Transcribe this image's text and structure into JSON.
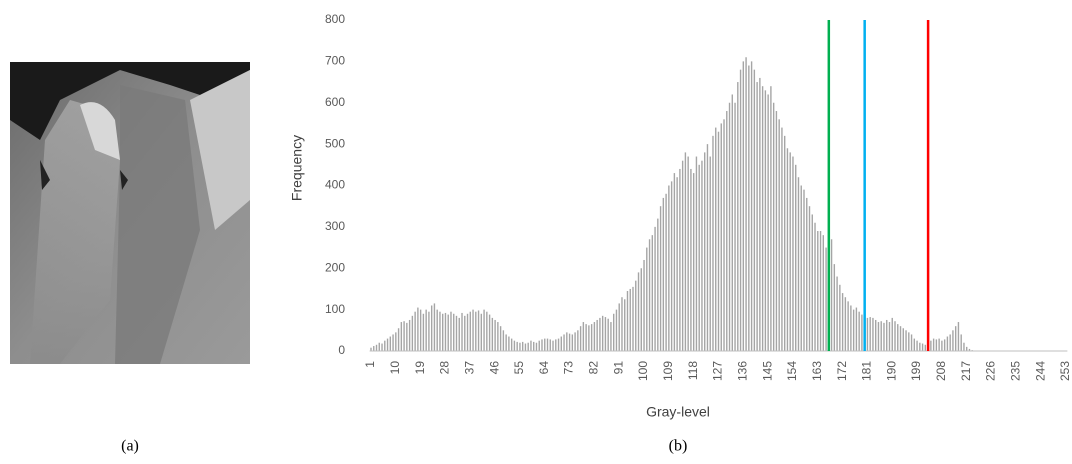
{
  "panels": {
    "a": "(a)",
    "b": "(b)"
  },
  "chart_data": {
    "type": "bar",
    "ylabel": "Frequency",
    "xlabel": "Gray-level",
    "categories": [
      1,
      null,
      null,
      null,
      null,
      null,
      null,
      null,
      null,
      10,
      null,
      null,
      null,
      null,
      null,
      null,
      null,
      null,
      19,
      null,
      null,
      null,
      null,
      null,
      null,
      null,
      null,
      28,
      null,
      null,
      null,
      null,
      null,
      null,
      null,
      null,
      37,
      null,
      null,
      null,
      null,
      null,
      null,
      null,
      null,
      46,
      null,
      null,
      null,
      null,
      null,
      null,
      null,
      null,
      55,
      null,
      null,
      null,
      null,
      null,
      null,
      null,
      null,
      64,
      null,
      null,
      null,
      null,
      null,
      null,
      null,
      null,
      73,
      null,
      null,
      null,
      null,
      null,
      null,
      null,
      null,
      82,
      null,
      null,
      null,
      null,
      null,
      null,
      null,
      null,
      91,
      null,
      null,
      null,
      null,
      null,
      null,
      null,
      null,
      100,
      null,
      null,
      null,
      null,
      null,
      null,
      null,
      null,
      109,
      null,
      null,
      null,
      null,
      null,
      null,
      null,
      null,
      118,
      null,
      null,
      null,
      null,
      null,
      null,
      null,
      null,
      127,
      null,
      null,
      null,
      null,
      null,
      null,
      null,
      null,
      136,
      null,
      null,
      null,
      null,
      null,
      null,
      null,
      null,
      145,
      null,
      null,
      null,
      null,
      null,
      null,
      null,
      null,
      154,
      null,
      null,
      null,
      null,
      null,
      null,
      null,
      null,
      163,
      null,
      null,
      null,
      null,
      null,
      null,
      null,
      null,
      172,
      null,
      null,
      null,
      null,
      null,
      null,
      null,
      null,
      181,
      null,
      null,
      null,
      null,
      null,
      null,
      null,
      null,
      190,
      null,
      null,
      null,
      null,
      null,
      null,
      null,
      null,
      199,
      null,
      null,
      null,
      null,
      null,
      null,
      null,
      null,
      208,
      null,
      null,
      null,
      null,
      null,
      null,
      null,
      null,
      217,
      null,
      null,
      null,
      null,
      null,
      null,
      null,
      null,
      226,
      null,
      null,
      null,
      null,
      null,
      null,
      null,
      null,
      235,
      null,
      null,
      null,
      null,
      null,
      null,
      null,
      null,
      244,
      null,
      null,
      null,
      null,
      null,
      null,
      null,
      null,
      253
    ],
    "values": [
      8,
      12,
      15,
      20,
      18,
      25,
      30,
      35,
      40,
      45,
      55,
      70,
      72,
      68,
      75,
      85,
      95,
      105,
      100,
      90,
      100,
      95,
      110,
      115,
      100,
      95,
      90,
      92,
      88,
      95,
      90,
      85,
      80,
      92,
      85,
      90,
      95,
      100,
      95,
      98,
      90,
      100,
      95,
      88,
      80,
      75,
      70,
      60,
      50,
      40,
      35,
      30,
      25,
      22,
      20,
      22,
      18,
      20,
      25,
      22,
      20,
      25,
      28,
      30,
      30,
      28,
      25,
      28,
      30,
      35,
      40,
      45,
      42,
      40,
      45,
      50,
      60,
      70,
      65,
      62,
      65,
      70,
      75,
      80,
      85,
      82,
      78,
      70,
      90,
      100,
      115,
      130,
      125,
      145,
      150,
      155,
      170,
      190,
      200,
      220,
      250,
      270,
      280,
      300,
      320,
      350,
      370,
      380,
      400,
      410,
      430,
      420,
      440,
      460,
      480,
      470,
      440,
      430,
      470,
      450,
      460,
      480,
      500,
      470,
      520,
      540,
      530,
      550,
      560,
      580,
      600,
      620,
      600,
      650,
      680,
      700,
      710,
      690,
      700,
      680,
      650,
      660,
      640,
      630,
      620,
      640,
      600,
      580,
      560,
      540,
      520,
      490,
      480,
      470,
      450,
      420,
      400,
      390,
      370,
      350,
      330,
      310,
      290,
      290,
      280,
      250,
      300,
      270,
      210,
      180,
      160,
      140,
      130,
      120,
      110,
      100,
      105,
      95,
      88,
      85,
      80,
      82,
      80,
      75,
      70,
      72,
      68,
      75,
      70,
      80,
      72,
      65,
      60,
      55,
      50,
      45,
      40,
      30,
      25,
      20,
      18,
      15,
      20,
      25,
      30,
      28,
      30,
      25,
      28,
      35,
      40,
      50,
      60,
      70,
      40,
      20,
      10,
      5,
      2,
      0,
      0,
      0,
      0,
      0,
      0,
      0,
      0,
      0,
      0,
      0,
      0,
      0,
      0,
      0,
      0,
      0,
      0,
      0,
      0,
      0,
      0,
      0,
      0,
      0,
      0,
      0,
      0,
      0,
      0,
      0,
      0,
      0,
      0
    ],
    "color": "#a5a5a5",
    "ylim": [
      0,
      800
    ],
    "yticks": [
      0,
      100,
      200,
      300,
      400,
      500,
      600,
      700,
      800
    ],
    "reference_lines": [
      {
        "x": 167,
        "color": "#00b050"
      },
      {
        "x": 180,
        "color": "#00b0f0"
      },
      {
        "x": 203,
        "color": "#ff0000"
      }
    ]
  }
}
